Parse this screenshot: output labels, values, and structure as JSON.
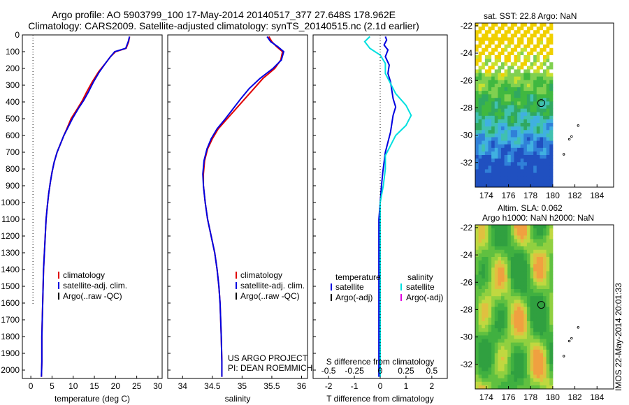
{
  "title_line1": "Argo profile: AO 5903799_100 17-May-2014 20140517_377 27.648S 178.962E",
  "title_line2": "Climatology: CARS2009. Satellite-adjusted climatology: synTS_20140515.nc (2.1d earlier)",
  "colors": {
    "climatology": "#e00000",
    "satellite": "#0000e0",
    "argo": "#000000",
    "sal_satellite": "#00e0e0",
    "sal_argo": "#e000e0"
  },
  "chart_data": [
    {
      "type": "line",
      "name": "temperature",
      "xlabel": "temperature (deg C)",
      "xlim": [
        -2,
        31
      ],
      "ylim": [
        2050,
        0
      ],
      "xticks": [
        0,
        5,
        10,
        15,
        20,
        25,
        30
      ],
      "yticks": [
        0,
        100,
        200,
        300,
        400,
        500,
        600,
        700,
        800,
        900,
        1000,
        1100,
        1200,
        1300,
        1400,
        1500,
        1600,
        1700,
        1800,
        1900,
        2000
      ],
      "legend": [
        "climatology",
        "satellite-adj. clim.",
        "Argo(..raw -QC)"
      ],
      "argo_dotted": {
        "x": 0.5,
        "depth_range": [
          0,
          1610
        ]
      },
      "series": [
        {
          "name": "climatology",
          "x": [
            23.3,
            23.1,
            22.5,
            20.0,
            18.8,
            17.6,
            16.0,
            14.5,
            13.2,
            12.2,
            11.0,
            9.5,
            8.5,
            7.8,
            7.0,
            6.2,
            5.5,
            5.0,
            4.6,
            4.2,
            3.9,
            3.6,
            3.4,
            3.2,
            3.0,
            2.9,
            2.8,
            2.7,
            2.6,
            2.6,
            2.5
          ],
          "y": [
            10,
            40,
            80,
            100,
            130,
            170,
            220,
            280,
            340,
            390,
            440,
            500,
            560,
            600,
            650,
            700,
            760,
            820,
            880,
            950,
            1020,
            1100,
            1200,
            1300,
            1400,
            1500,
            1600,
            1700,
            1800,
            1950,
            2040
          ]
        },
        {
          "name": "satellite-adj. clim.",
          "x": [
            23.3,
            23.0,
            22.4,
            19.8,
            18.8,
            17.6,
            16.2,
            14.8,
            13.6,
            12.5,
            11.2,
            9.8,
            8.6,
            7.8,
            7.0,
            6.2,
            5.5,
            5.0,
            4.6,
            4.2,
            3.9,
            3.6,
            3.4,
            3.2,
            3.0,
            2.9,
            2.8,
            2.7,
            2.6,
            2.6,
            2.5
          ],
          "y": [
            10,
            40,
            80,
            100,
            130,
            170,
            220,
            280,
            340,
            390,
            440,
            500,
            560,
            600,
            650,
            700,
            760,
            820,
            880,
            950,
            1020,
            1100,
            1200,
            1300,
            1400,
            1500,
            1600,
            1700,
            1800,
            1950,
            2040
          ]
        }
      ]
    },
    {
      "type": "line",
      "name": "salinity",
      "xlabel": "salinity",
      "xlim": [
        33.75,
        36.1
      ],
      "ylim": [
        2050,
        0
      ],
      "xticks": [
        34,
        34.5,
        35,
        35.5,
        36
      ],
      "legend": [
        "climatology",
        "satellite-adj. clim.",
        "Argo(..raw -QC)"
      ],
      "credit": [
        "US ARGO PROJECT",
        "PI: DEAN ROEMMICH"
      ],
      "series": [
        {
          "name": "climatology",
          "x": [
            35.45,
            35.5,
            35.58,
            35.68,
            35.65,
            35.55,
            35.35,
            35.2,
            35.05,
            34.9,
            34.75,
            34.6,
            34.5,
            34.42,
            34.37,
            34.35,
            34.35,
            34.38,
            34.42,
            34.48,
            34.54,
            34.58,
            34.61,
            34.63,
            34.64,
            34.65,
            34.66,
            34.66
          ],
          "y": [
            10,
            40,
            70,
            100,
            150,
            200,
            260,
            320,
            380,
            440,
            500,
            560,
            620,
            680,
            750,
            830,
            900,
            1000,
            1100,
            1200,
            1300,
            1400,
            1500,
            1600,
            1700,
            1800,
            1950,
            2040
          ]
        },
        {
          "name": "satellite-adj. clim.",
          "x": [
            35.42,
            35.48,
            35.6,
            35.7,
            35.66,
            35.52,
            35.3,
            35.12,
            34.98,
            34.85,
            34.72,
            34.58,
            34.48,
            34.41,
            34.36,
            34.34,
            34.35,
            34.38,
            34.42,
            34.48,
            34.54,
            34.58,
            34.61,
            34.63,
            34.64,
            34.65,
            34.66,
            34.66
          ],
          "y": [
            10,
            40,
            70,
            100,
            150,
            200,
            260,
            320,
            380,
            440,
            500,
            560,
            620,
            680,
            750,
            830,
            900,
            1000,
            1100,
            1200,
            1300,
            1400,
            1500,
            1600,
            1700,
            1800,
            1950,
            2040
          ]
        }
      ]
    },
    {
      "type": "line",
      "name": "differences",
      "xlabel": "T difference from climatology",
      "xlabel_top": "S difference from climatology",
      "xlim": [
        -2.6,
        2.6
      ],
      "ylim": [
        2050,
        0
      ],
      "xticks": [
        -2,
        -1,
        0,
        1,
        2
      ],
      "xticks_s": [
        "-0.5",
        "-0.25",
        "0",
        "0.25",
        "0.5"
      ],
      "legend_titles": [
        "temperature",
        "salinity"
      ],
      "legend_t": [
        "satellite",
        "Argo(-adj)"
      ],
      "legend_s": [
        "satellite",
        "Argo(-adj)"
      ],
      "series": [
        {
          "name": "temperature satellite",
          "x": [
            0.2,
            0.25,
            0.15,
            0.3,
            0.2,
            0.35,
            0.3,
            0.4,
            0.45,
            0.5,
            0.6,
            0.5,
            0.45,
            0.4,
            0.3,
            0.2,
            0.15,
            0.1,
            0.05,
            0.0,
            -0.05,
            -0.05,
            -0.05,
            -0.05,
            -0.05,
            -0.05,
            -0.05
          ],
          "y": [
            10,
            30,
            60,
            90,
            130,
            180,
            230,
            280,
            330,
            380,
            430,
            480,
            530,
            580,
            640,
            700,
            760,
            820,
            900,
            1000,
            1100,
            1200,
            1300,
            1400,
            1600,
            1800,
            2040
          ]
        },
        {
          "name": "salinity satellite",
          "x": [
            -0.1,
            -0.15,
            -0.1,
            0.0,
            0.05,
            0.05,
            0.1,
            0.15,
            0.25,
            0.3,
            0.25,
            0.15,
            0.1,
            0.05,
            0.05,
            0.03,
            0.0,
            0.0,
            0.0,
            0.0,
            0.0,
            0.0,
            0.0
          ],
          "y": [
            10,
            40,
            80,
            120,
            170,
            230,
            290,
            350,
            420,
            480,
            540,
            600,
            660,
            720,
            800,
            900,
            1000,
            1100,
            1200,
            1400,
            1600,
            1800,
            2040
          ]
        }
      ]
    },
    {
      "type": "heatmap",
      "name": "sst_map",
      "title": "sat. SST: 22.8 Argo: NaN",
      "xlim": [
        173,
        185.5
      ],
      "ylim": [
        -33.8,
        -21.8
      ],
      "xticks": [
        174,
        176,
        178,
        180,
        182,
        184
      ],
      "yticks": [
        -22,
        -24,
        -26,
        -28,
        -30,
        -32
      ],
      "marker": {
        "lon": 178.96,
        "lat": -27.65
      },
      "islands": [
        [
          181.0,
          -31.4
        ],
        [
          181.5,
          -30.3
        ],
        [
          181.7,
          -30.1
        ],
        [
          182.3,
          -29.3
        ]
      ]
    },
    {
      "type": "heatmap",
      "name": "sla_map",
      "title": "Altim. SLA: 0.062",
      "subtitle": "Argo h1000: NaN h2000: NaN",
      "xlim": [
        173,
        185.5
      ],
      "ylim": [
        -33.8,
        -21.8
      ],
      "xticks": [
        174,
        176,
        178,
        180,
        182,
        184
      ],
      "yticks": [
        -22,
        -24,
        -26,
        -28,
        -30,
        -32
      ],
      "marker": {
        "lon": 178.96,
        "lat": -27.65
      },
      "islands": [
        [
          181.0,
          -31.4
        ],
        [
          181.5,
          -30.3
        ],
        [
          181.7,
          -30.1
        ],
        [
          182.3,
          -29.3
        ]
      ]
    }
  ],
  "footer_vertical": "IMOS 22-May-2014 20:01:33"
}
